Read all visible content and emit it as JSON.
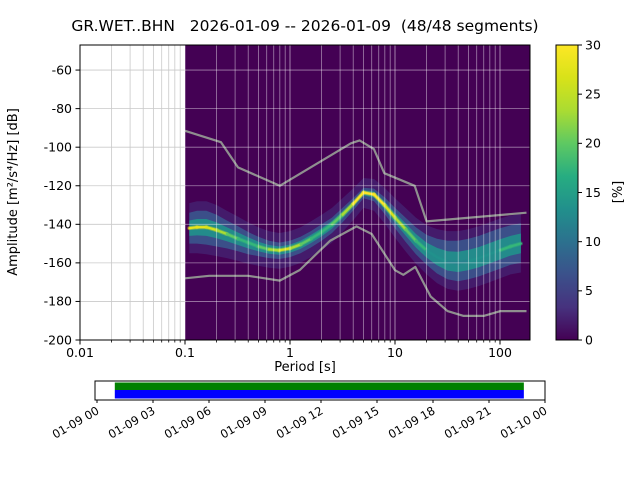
{
  "title": "GR.WET..BHN   2026-01-09 -- 2026-01-09  (48/48 segments)",
  "station": "GR.WET..BHN",
  "date_range": "2026-01-09 -- 2026-01-09",
  "segments": "48/48",
  "chart_data": {
    "type": "heatmap",
    "subtype": "ppsd-probabilistic-power-spectral-density",
    "title": "GR.WET..BHN   2026-01-09 -- 2026-01-09  (48/48 segments)",
    "xlabel": "Period [s]",
    "ylabel": "Amplitude [m²/s⁴/Hz] [dB]",
    "xscale": "log",
    "xlim": [
      0.01,
      193
    ],
    "ylim": [
      -200,
      -47
    ],
    "grid": true,
    "x_tick_periods": [
      0.01,
      0.1,
      1,
      10,
      100
    ],
    "x_ticklabels": [
      "0.01",
      "0.1",
      "1",
      "10",
      "100"
    ],
    "y_ticks": [
      -60,
      -80,
      -100,
      -120,
      -140,
      -160,
      -180,
      -200
    ],
    "data_xmin": 0.1,
    "background_color": "#440154",
    "colorbar": {
      "label": "[%]",
      "min": 0,
      "max": 30,
      "ticks": [
        0,
        5,
        10,
        15,
        20,
        25,
        30
      ],
      "colormap": "viridis",
      "colors": [
        "#440154",
        "#46327e",
        "#3b518b",
        "#2c718e",
        "#21908c",
        "#27ad81",
        "#5ec962",
        "#aadc32",
        "#d8e219",
        "#fde725"
      ]
    },
    "psd_band": {
      "periods": [
        0.11,
        0.13,
        0.16,
        0.2,
        0.25,
        0.32,
        0.4,
        0.5,
        0.63,
        0.79,
        1.0,
        1.26,
        1.58,
        2.0,
        2.51,
        3.16,
        3.98,
        5.01,
        6.31,
        7.94,
        10.0,
        12.6,
        15.8,
        20.0,
        25.1,
        31.6,
        39.8,
        50.1,
        63.1,
        79.4,
        100,
        126,
        158
      ],
      "mode_db": [
        -142,
        -141.5,
        -141.5,
        -143,
        -145,
        -147.5,
        -149.5,
        -151.5,
        -153,
        -153.5,
        -152.5,
        -150.5,
        -147.5,
        -144,
        -140,
        -135,
        -129.5,
        -123.5,
        -124.5,
        -130,
        -136.5,
        -142.5,
        -148.5,
        -153.5,
        -157,
        -159.5,
        -160,
        -159,
        -157.5,
        -155.5,
        -153.5,
        -151.5,
        -150
      ],
      "upper_db": [
        -134,
        -133,
        -133,
        -135,
        -138,
        -141,
        -144,
        -146.5,
        -148.5,
        -149.5,
        -148.5,
        -146.5,
        -143.5,
        -140,
        -136.5,
        -131.5,
        -126.5,
        -121,
        -121.5,
        -126,
        -131.5,
        -136.5,
        -141.5,
        -145.5,
        -147.5,
        -148.5,
        -148.5,
        -147.5,
        -146,
        -144,
        -142,
        -140.5,
        -139.5
      ],
      "lower_db": [
        -150,
        -150,
        -150.5,
        -151.5,
        -152.5,
        -154,
        -155.5,
        -156.5,
        -157.5,
        -158,
        -157,
        -155,
        -152,
        -148.5,
        -144.5,
        -139,
        -133,
        -126.5,
        -128,
        -134.5,
        -142,
        -149,
        -155.5,
        -161,
        -165.5,
        -168.5,
        -169.5,
        -168.5,
        -167,
        -165,
        -163,
        -161,
        -160
      ],
      "core_colors": [
        "#e8e419",
        "#e8e419",
        "#d8e219",
        "#aadc32",
        "#5ec962",
        "#35b779",
        "#35b779",
        "#5ec962",
        "#aadc32",
        "#d8e219",
        "#aadc32",
        "#5ec962",
        "#35b779",
        "#35b779",
        "#5ec962",
        "#aadc32",
        "#fde725",
        "#fde725",
        "#fde725",
        "#d8e219",
        "#aadc32",
        "#5ec962",
        "#35b779",
        "#21918c",
        "#21918c",
        "#26828e",
        "#26828e",
        "#21918c",
        "#21918c",
        "#21918c",
        "#35b779",
        "#35b779",
        "#5ec962"
      ]
    },
    "noise_models": {
      "color": "#8f8f8f",
      "high": {
        "periods": [
          0.1,
          0.22,
          0.32,
          0.8,
          3.8,
          4.6,
          6.3,
          7.9,
          15.4,
          20.0,
          179
        ],
        "db": [
          -91.5,
          -97.4,
          -110.5,
          -120.0,
          -98.0,
          -96.5,
          -101.0,
          -113.5,
          -120.0,
          -138.5,
          -134.0
        ]
      },
      "low": {
        "periods": [
          0.1,
          0.17,
          0.4,
          0.8,
          1.24,
          2.4,
          4.3,
          6.0,
          10.0,
          12.0,
          15.6,
          21.9,
          31.6,
          45.0,
          70.0,
          101,
          154,
          179
        ],
        "db": [
          -168.0,
          -166.7,
          -166.7,
          -169.2,
          -163.7,
          -148.6,
          -141.1,
          -145.0,
          -163.8,
          -166.2,
          -162.1,
          -177.5,
          -185.0,
          -187.5,
          -187.5,
          -185.0,
          -185.0,
          -185.0
        ]
      }
    }
  },
  "timeline": {
    "labels": [
      "01-09 00",
      "01-09 03",
      "01-09 06",
      "01-09 09",
      "01-09 12",
      "01-09 15",
      "01-09 18",
      "01-09 21",
      "01-10 00"
    ],
    "bar_colors": {
      "top": "#008000",
      "bottom": "#0000ff"
    },
    "coverage_start_frac": 0.044,
    "coverage_end_frac": 0.953
  }
}
